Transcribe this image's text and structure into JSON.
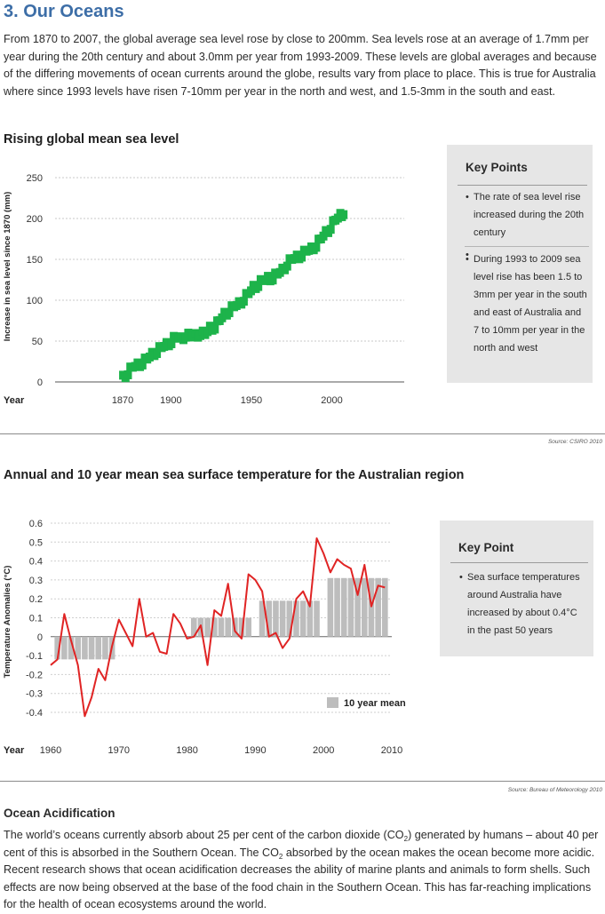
{
  "page": {
    "title": "3. Our Oceans",
    "intro": "From 1870 to 2007, the global average sea level rose by close to 200mm. Sea levels rose at an average of 1.7mm per year during the 20th century and about 3.0mm per year from 1993-2009. These levels are global averages and because of the differing movements of ocean currents around the globe, results vary from place to place. This is true for Australia where since 1993 levels have risen 7-10mm per year in the north and west, and 1.5-3mm in the south and east."
  },
  "chart1": {
    "heading": "Rising global mean sea level",
    "source": "Source: CSIRO 2010",
    "key_points": {
      "title": "Key Points",
      "items": [
        "The rate of sea level rise increased during the 20th century",
        "During 1993 to 2009 sea level rise has been 1.5 to 3mm per year in the south and east of Australia and 7 to 10mm per year in the north and west"
      ]
    }
  },
  "chart2": {
    "heading": "Annual and 10 year mean sea surface temperature for the Australian region",
    "source": "Source: Bureau of Meteorology 2010",
    "key_points": {
      "title": "Key Point",
      "items": [
        "Sea surface temperatures around Australia have increased by about 0.4°C in the past 50 years"
      ]
    }
  },
  "acidification": {
    "heading": "Ocean Acidification",
    "p1": "The world’s oceans currently absorb about 25 per cent of the carbon dioxide (CO",
    "sub1": "2",
    "p2": ") generated by humans – about 40 per cent of this is absorbed in the Southern Ocean.  The CO",
    "sub2": "2",
    "p3": " absorbed by the ocean makes the ocean become more acidic. Recent research shows that ocean acidification decreases the ability of marine plants and animals to form shells. Such effects are now being observed at the base of the food chain in the Southern Ocean. This has far-reaching implications for the health of ocean ecosystems around the world."
  },
  "chart_data": [
    {
      "type": "scatter",
      "title": "Rising global mean sea level",
      "xlabel": "Year",
      "ylabel": "Increase in sea level since 1870 (mm)",
      "xlim": [
        1828,
        2045
      ],
      "ylim": [
        0,
        250
      ],
      "xticks": [
        1870,
        1900,
        1950,
        2000
      ],
      "yticks": [
        0,
        50,
        100,
        150,
        200,
        250
      ],
      "grid": true,
      "color": "#1db34a",
      "x": [
        1870,
        1873,
        1876,
        1879,
        1882,
        1885,
        1888,
        1891,
        1894,
        1897,
        1900,
        1903,
        1906,
        1909,
        1912,
        1915,
        1918,
        1921,
        1924,
        1927,
        1930,
        1933,
        1936,
        1939,
        1942,
        1945,
        1948,
        1951,
        1954,
        1957,
        1960,
        1963,
        1966,
        1969,
        1972,
        1975,
        1978,
        1981,
        1984,
        1987,
        1990,
        1993,
        1996,
        1999,
        2002,
        2005,
        2007
      ],
      "y": [
        5,
        12,
        18,
        20,
        24,
        28,
        33,
        38,
        42,
        45,
        50,
        55,
        52,
        58,
        55,
        56,
        60,
        58,
        65,
        68,
        75,
        82,
        88,
        92,
        95,
        102,
        108,
        115,
        120,
        124,
        126,
        128,
        132,
        136,
        145,
        150,
        152,
        156,
        160,
        162,
        168,
        175,
        182,
        190,
        198,
        203,
        208
      ]
    },
    {
      "type": "bar",
      "title": "Annual and 10 year mean sea surface temperature for the Australian region",
      "xlabel": "Year",
      "ylabel": "Temperature Anomalies (°C)",
      "xlim": [
        1960,
        2010
      ],
      "ylim": [
        -0.4,
        0.6
      ],
      "xticks": [
        1960,
        1970,
        1980,
        1990,
        2000,
        2010
      ],
      "yticks": [
        0.6,
        0.5,
        0.4,
        0.3,
        0.2,
        0.1,
        0,
        -0.1,
        -0.2,
        -0.3,
        -0.4
      ],
      "legend": "bottom-right",
      "bar_series": {
        "name": "10 year mean",
        "color": "#bdbdbd",
        "periods": [
          {
            "start": 1961,
            "end": 1969,
            "value": -0.12
          },
          {
            "start": 1981,
            "end": 1989,
            "value": 0.1
          },
          {
            "start": 1991,
            "end": 1999,
            "value": 0.19
          },
          {
            "start": 2001,
            "end": 2009,
            "value": 0.31
          }
        ]
      },
      "line_series": {
        "color": "#e02424",
        "x": [
          1960,
          1961,
          1962,
          1963,
          1964,
          1965,
          1966,
          1967,
          1968,
          1969,
          1970,
          1971,
          1972,
          1973,
          1974,
          1975,
          1976,
          1977,
          1978,
          1979,
          1980,
          1981,
          1982,
          1983,
          1984,
          1985,
          1986,
          1987,
          1988,
          1989,
          1990,
          1991,
          1992,
          1993,
          1994,
          1995,
          1996,
          1997,
          1998,
          1999,
          2000,
          2001,
          2002,
          2003,
          2004,
          2005,
          2006,
          2007,
          2008,
          2009
        ],
        "y": [
          -0.15,
          -0.12,
          0.12,
          -0.02,
          -0.15,
          -0.42,
          -0.32,
          -0.17,
          -0.23,
          -0.05,
          0.09,
          0.02,
          -0.05,
          0.2,
          0.0,
          0.02,
          -0.08,
          -0.09,
          0.12,
          0.07,
          -0.01,
          0.0,
          0.06,
          -0.15,
          0.14,
          0.11,
          0.28,
          0.03,
          -0.01,
          0.33,
          0.3,
          0.24,
          -0.0,
          0.02,
          -0.06,
          -0.01,
          0.2,
          0.24,
          0.16,
          0.52,
          0.44,
          0.34,
          0.41,
          0.38,
          0.36,
          0.22,
          0.38,
          0.16,
          0.27,
          0.26
        ]
      }
    }
  ]
}
